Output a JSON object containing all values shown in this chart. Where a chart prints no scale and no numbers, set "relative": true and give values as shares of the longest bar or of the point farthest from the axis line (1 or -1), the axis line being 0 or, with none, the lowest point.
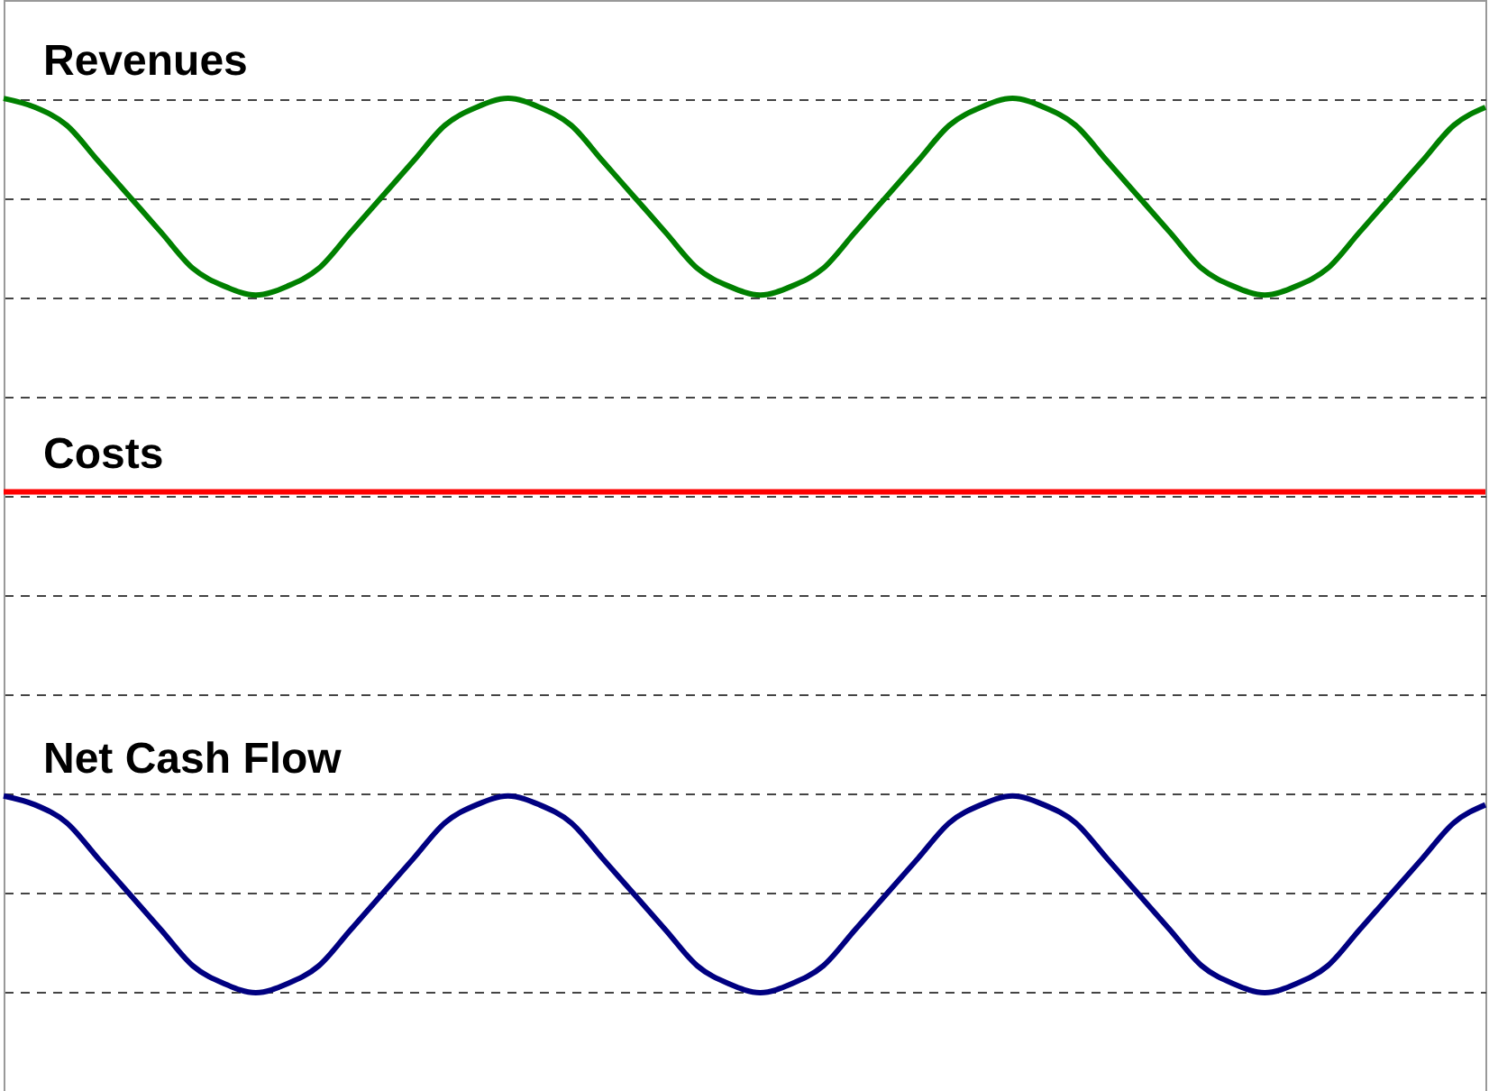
{
  "chart_data": {
    "type": "line",
    "relative": true,
    "categories": [
      null,
      null,
      null,
      null,
      null,
      null,
      null,
      null,
      null,
      null,
      null,
      null,
      null,
      null,
      null,
      null,
      null,
      null,
      null,
      null,
      null,
      null,
      null,
      null,
      null,
      null,
      null,
      null,
      null,
      null,
      null,
      null,
      null,
      null,
      null,
      null,
      null,
      null,
      null,
      null,
      null,
      null,
      null,
      null,
      null,
      null,
      null,
      null
    ],
    "series": [
      {
        "name": "Revenues",
        "color": "#008000",
        "values": [
          1,
          0.99,
          0.97,
          0.93,
          0.89,
          0.85,
          0.81,
          0.79,
          0.78,
          0.79,
          0.81,
          0.85,
          0.89,
          0.93,
          0.97,
          0.99,
          1,
          0.99,
          0.97,
          0.93,
          0.89,
          0.85,
          0.81,
          0.79,
          0.78,
          0.79,
          0.81,
          0.85,
          0.89,
          0.93,
          0.97,
          0.99,
          1,
          0.99,
          0.97,
          0.93,
          0.89,
          0.85,
          0.81,
          0.79,
          0.78,
          0.79,
          0.81,
          0.85,
          0.89,
          0.93,
          0.97,
          0.99
        ]
      },
      {
        "name": "Costs",
        "color": "#ff0000",
        "values": [
          0.56,
          0.56,
          0.56,
          0.56,
          0.56,
          0.56,
          0.56,
          0.56,
          0.56,
          0.56,
          0.56,
          0.56,
          0.56,
          0.56,
          0.56,
          0.56,
          0.56,
          0.56,
          0.56,
          0.56,
          0.56,
          0.56,
          0.56,
          0.56,
          0.56,
          0.56,
          0.56,
          0.56,
          0.56,
          0.56,
          0.56,
          0.56,
          0.56,
          0.56,
          0.56,
          0.56,
          0.56,
          0.56,
          0.56,
          0.56,
          0.56,
          0.56,
          0.56,
          0.56,
          0.56,
          0.56,
          0.56,
          0.56
        ]
      },
      {
        "name": "Net Cash Flow",
        "color": "#000080",
        "values": [
          0.22,
          0.21,
          0.19,
          0.15,
          0.11,
          0.07,
          0.03,
          0.01,
          0,
          0.01,
          0.03,
          0.07,
          0.11,
          0.15,
          0.19,
          0.21,
          0.22,
          0.21,
          0.19,
          0.15,
          0.11,
          0.07,
          0.03,
          0.01,
          0,
          0.01,
          0.03,
          0.07,
          0.11,
          0.15,
          0.19,
          0.21,
          0.22,
          0.21,
          0.19,
          0.15,
          0.11,
          0.07,
          0.03,
          0.01,
          0,
          0.01,
          0.03,
          0.07,
          0.11,
          0.15,
          0.19,
          0.21
        ]
      }
    ],
    "grid": "y",
    "marker": "none",
    "line_style": "solid"
  }
}
